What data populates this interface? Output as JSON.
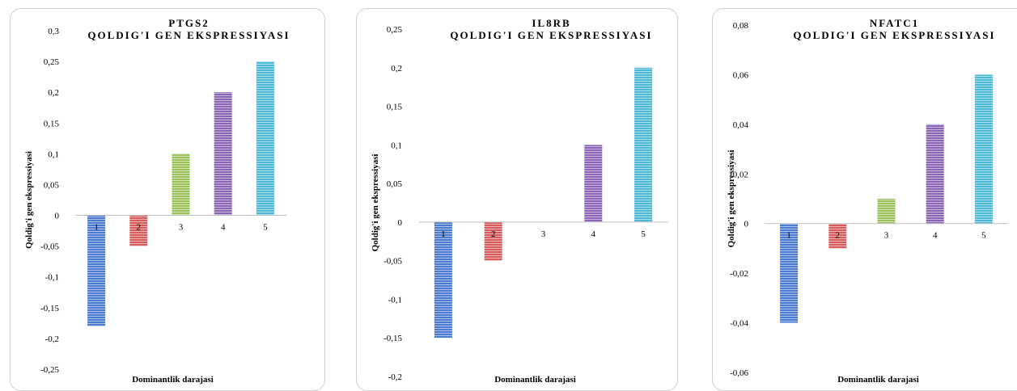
{
  "colors": {
    "series": [
      "#4a7bd0",
      "#d75b5b",
      "#9cc05a",
      "#8a64b5",
      "#4bb9d6"
    ],
    "zero_line": "#bfbfbf",
    "panel_border": "#d0d0d0"
  },
  "chart_data": [
    {
      "type": "bar",
      "title": [
        "PTGS2",
        "QOLDIG'I GEN EKSPRESSIYASI"
      ],
      "xlabel": "Dominantlik darajasi",
      "ylabel": "Qoldig'i gen ekspressiyasi",
      "categories": [
        "1",
        "2",
        "3",
        "4",
        "5"
      ],
      "values": [
        -0.18,
        -0.05,
        0.1,
        0.2,
        0.25
      ],
      "ylim": [
        -0.25,
        0.3
      ],
      "yticks": [
        0.3,
        0.25,
        0.2,
        0.15,
        0.1,
        0.05,
        0,
        -0.05,
        -0.1,
        -0.15,
        -0.2,
        -0.25
      ],
      "ytick_labels": [
        "0,3",
        "0,25",
        "0,2",
        "0,15",
        "0,1",
        "0,05",
        "0",
        "-0,05",
        "-0,1",
        "-0,15",
        "-0,2",
        "-0,25"
      ],
      "grid": false,
      "legend": "none"
    },
    {
      "type": "bar",
      "title": [
        "IL8RB",
        "QOLDIG'I GEN EKSPRESSIYASI"
      ],
      "xlabel": "Dominantlik darajasi",
      "ylabel": "Qoldig'i gen ekspressiyasi",
      "categories": [
        "1",
        "2",
        "3",
        "4",
        "5"
      ],
      "values": [
        -0.15,
        -0.05,
        0,
        0.1,
        0.2
      ],
      "ylim": [
        -0.2,
        0.25
      ],
      "yticks": [
        0.25,
        0.2,
        0.15,
        0.1,
        0.05,
        0,
        -0.05,
        -0.1,
        -0.15,
        -0.2
      ],
      "ytick_labels": [
        "0,25",
        "0,2",
        "0,15",
        "0,1",
        "0,05",
        "0",
        "-0,05",
        "-0,1",
        "-0,15",
        "-0,2"
      ],
      "grid": false,
      "legend": "none"
    },
    {
      "type": "bar",
      "title": [
        "NFATC1",
        "QOLDIG'I GEN EKSPRESSIYASI"
      ],
      "xlabel": "Dominantlik darajasi",
      "ylabel": "Qoldig'i gen ekspressiyasi",
      "categories": [
        "1",
        "2",
        "3",
        "4",
        "5"
      ],
      "values": [
        -0.04,
        -0.01,
        0.01,
        0.04,
        0.06
      ],
      "ylim": [
        -0.06,
        0.08
      ],
      "yticks": [
        0.08,
        0.06,
        0.04,
        0.02,
        0,
        -0.02,
        -0.04,
        -0.06
      ],
      "ytick_labels": [
        "0,08",
        "0,06",
        "0,04",
        "0,02",
        "0",
        "-0,02",
        "-0,04",
        "-0,06"
      ],
      "grid": false,
      "legend": "none"
    }
  ]
}
